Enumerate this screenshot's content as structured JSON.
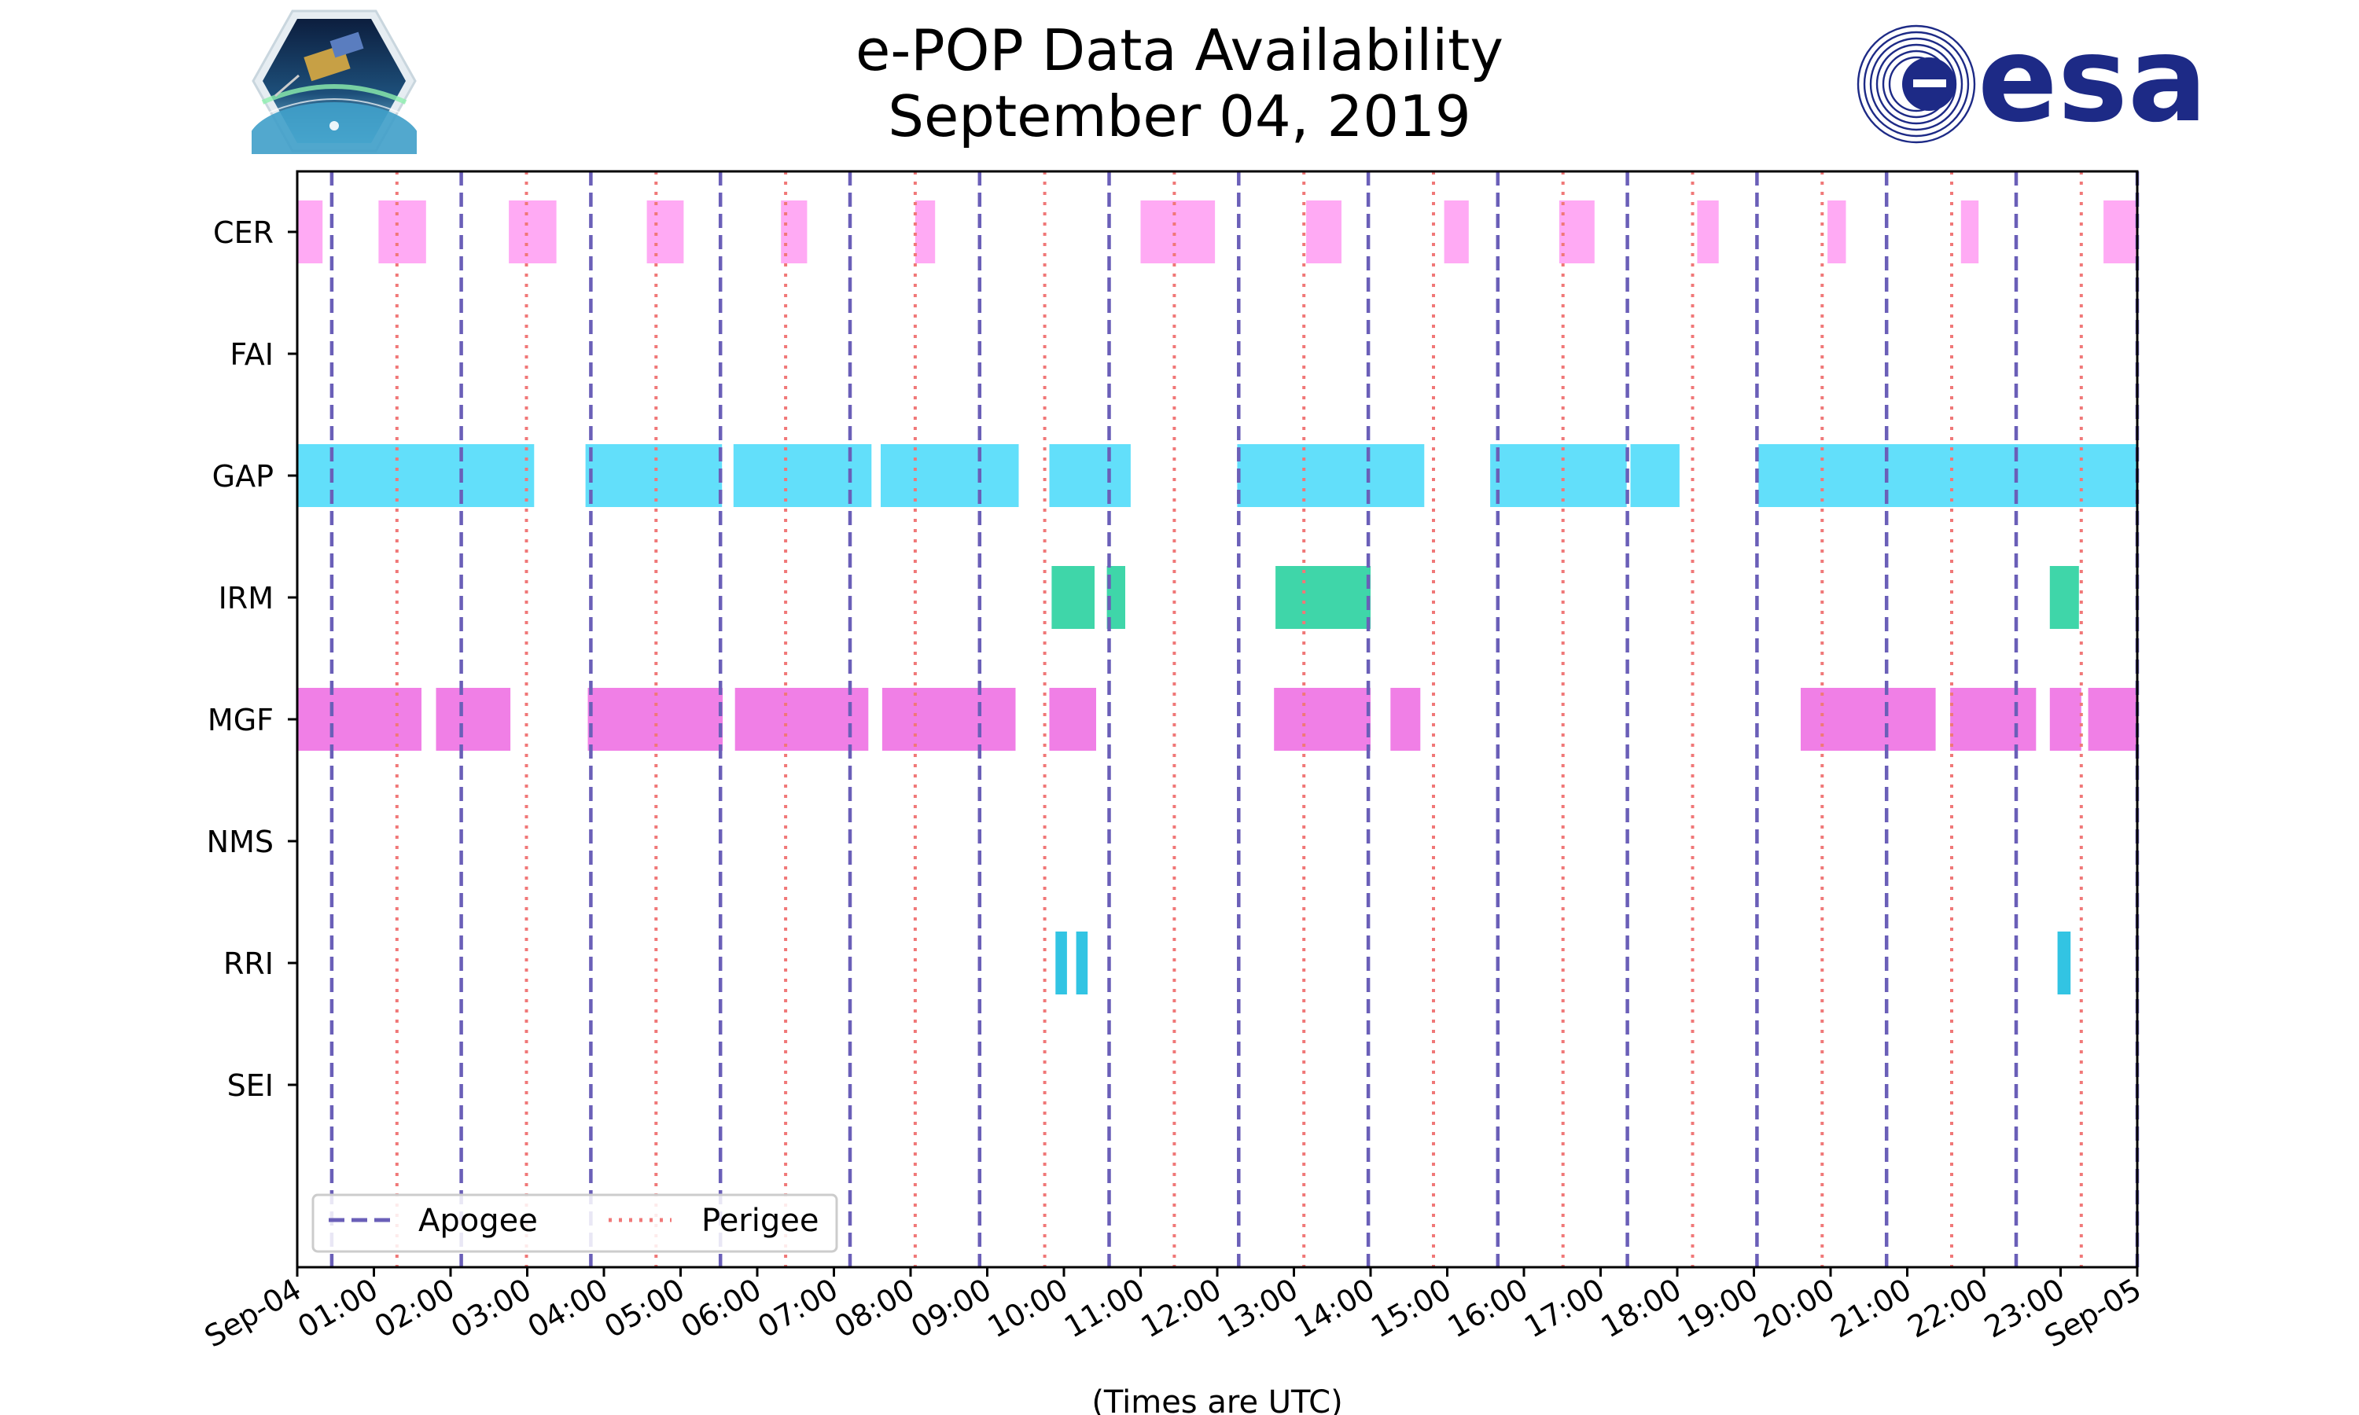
{
  "chart_data": {
    "type": "timeline",
    "title": "e-POP Data Availability",
    "subtitle": "September 04, 2019",
    "xlabel": "(Times are UTC)",
    "xlim_hours": [
      0,
      24
    ],
    "x_tick_labels": [
      "Sep-04",
      "01:00",
      "02:00",
      "03:00",
      "04:00",
      "05:00",
      "06:00",
      "07:00",
      "08:00",
      "09:00",
      "10:00",
      "11:00",
      "12:00",
      "13:00",
      "14:00",
      "15:00",
      "16:00",
      "17:00",
      "18:00",
      "19:00",
      "20:00",
      "21:00",
      "22:00",
      "23:00",
      "Sep-05"
    ],
    "instruments": [
      "CER",
      "FAI",
      "GAP",
      "IRM",
      "MGF",
      "NMS",
      "RRI",
      "SEI"
    ],
    "colors": {
      "CER": "#ffaaf4",
      "GAP": "#62dffa",
      "IRM": "#3fd6a9",
      "MGF": "#f07fe6",
      "RRI": "#32c4e3",
      "apogee": "#6a5fb8",
      "perigee": "#f07878"
    },
    "segments": {
      "CER": [
        [
          0.0,
          0.33
        ],
        [
          1.06,
          0.62
        ],
        [
          2.76,
          0.62
        ],
        [
          4.56,
          0.48
        ],
        [
          6.31,
          0.34
        ],
        [
          8.06,
          0.26
        ],
        [
          11.0,
          0.97
        ],
        [
          13.16,
          0.46
        ],
        [
          14.96,
          0.32
        ],
        [
          16.46,
          0.46
        ],
        [
          18.26,
          0.28
        ],
        [
          19.96,
          0.24
        ],
        [
          21.7,
          0.23
        ],
        [
          23.56,
          0.44
        ]
      ],
      "FAI": [],
      "GAP": [
        [
          0.0,
          3.09
        ],
        [
          3.76,
          1.78
        ],
        [
          5.69,
          1.8
        ],
        [
          7.61,
          1.8
        ],
        [
          9.81,
          1.06
        ],
        [
          12.26,
          2.44
        ],
        [
          15.56,
          1.78
        ],
        [
          17.39,
          0.64
        ],
        [
          19.06,
          4.94
        ]
      ],
      "IRM": [
        [
          9.84,
          0.56
        ],
        [
          10.56,
          0.24
        ],
        [
          12.76,
          1.24
        ],
        [
          22.86,
          0.38
        ]
      ],
      "MGF": [
        [
          0.0,
          1.62
        ],
        [
          1.81,
          0.97
        ],
        [
          3.79,
          1.76
        ],
        [
          5.71,
          1.74
        ],
        [
          7.63,
          1.74
        ],
        [
          9.81,
          0.61
        ],
        [
          12.74,
          1.26
        ],
        [
          14.26,
          0.39
        ],
        [
          19.61,
          1.76
        ],
        [
          21.56,
          1.12
        ],
        [
          22.86,
          0.41
        ],
        [
          23.36,
          0.64
        ]
      ],
      "NMS": [],
      "RRI": [
        [
          9.89,
          0.15
        ],
        [
          10.16,
          0.15
        ],
        [
          22.96,
          0.17
        ]
      ],
      "SEI": []
    },
    "apogee_hours": [
      0.45,
      2.14,
      3.83,
      5.52,
      7.21,
      8.9,
      10.59,
      12.28,
      13.97,
      15.66,
      17.35,
      19.04,
      20.73,
      22.42,
      24.0
    ],
    "perigee_hours": [
      1.3,
      2.99,
      4.68,
      6.37,
      8.06,
      9.75,
      11.44,
      13.13,
      14.82,
      16.51,
      18.2,
      19.89,
      21.58,
      23.27
    ],
    "legend": {
      "position": "lower-left",
      "entries": [
        "Apogee",
        "Perigee"
      ]
    }
  }
}
